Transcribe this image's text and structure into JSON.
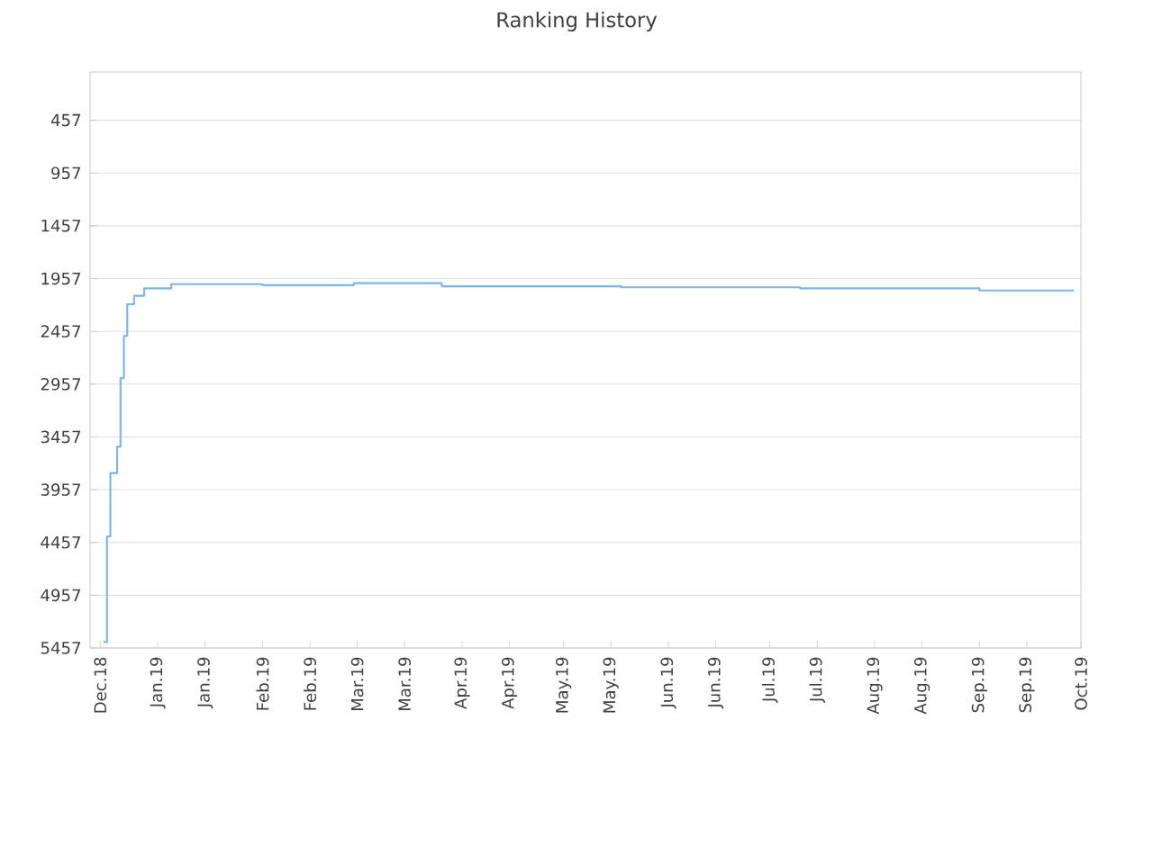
{
  "chart_data": {
    "type": "step",
    "title": "Ranking History",
    "x": [
      "2018-12-16",
      "2018-12-17",
      "2018-12-18",
      "2018-12-20",
      "2018-12-21",
      "2018-12-22",
      "2018-12-23",
      "2018-12-25",
      "2018-12-28",
      "2019-01-05",
      "2019-02-01",
      "2019-02-28",
      "2019-03-26",
      "2019-05-18",
      "2019-07-10",
      "2019-09-01",
      "2019-09-29"
    ],
    "series": [
      {
        "color": "#7cb5ec",
        "values": [
          5400,
          4400,
          3800,
          3550,
          2900,
          2500,
          2200,
          2120,
          2050,
          2010,
          2020,
          2000,
          2030,
          2040,
          2050,
          2070,
          2070
        ]
      }
    ],
    "xlim": [
      "2018-12-12",
      "2019-10-01"
    ],
    "xticks": [
      {
        "value": "2018-12-15",
        "label": "Dec.18"
      },
      {
        "value": "2019-01-01",
        "label": "Jan.19"
      },
      {
        "value": "2019-01-15",
        "label": "Jan.19"
      },
      {
        "value": "2019-02-01",
        "label": "Feb.19"
      },
      {
        "value": "2019-02-15",
        "label": "Feb.19"
      },
      {
        "value": "2019-03-01",
        "label": "Mar.19"
      },
      {
        "value": "2019-03-15",
        "label": "Mar.19"
      },
      {
        "value": "2019-04-01",
        "label": "Apr.19"
      },
      {
        "value": "2019-04-15",
        "label": "Apr.19"
      },
      {
        "value": "2019-05-01",
        "label": "May.19"
      },
      {
        "value": "2019-05-15",
        "label": "May.19"
      },
      {
        "value": "2019-06-01",
        "label": "Jun.19"
      },
      {
        "value": "2019-06-15",
        "label": "Jun.19"
      },
      {
        "value": "2019-07-01",
        "label": "Jul.19"
      },
      {
        "value": "2019-07-15",
        "label": "Jul.19"
      },
      {
        "value": "2019-08-01",
        "label": "Aug.19"
      },
      {
        "value": "2019-08-15",
        "label": "Aug.19"
      },
      {
        "value": "2019-09-01",
        "label": "Sep.19"
      },
      {
        "value": "2019-09-15",
        "label": "Sep.19"
      },
      {
        "value": "2019-10-01",
        "label": "Oct.19"
      }
    ],
    "ylim": [
      5457,
      0
    ],
    "yticks": [
      457,
      957,
      1457,
      1957,
      2457,
      2957,
      3457,
      3957,
      4457,
      4957,
      5457
    ],
    "grid": "y",
    "marker": "none",
    "line_style": "solid"
  }
}
